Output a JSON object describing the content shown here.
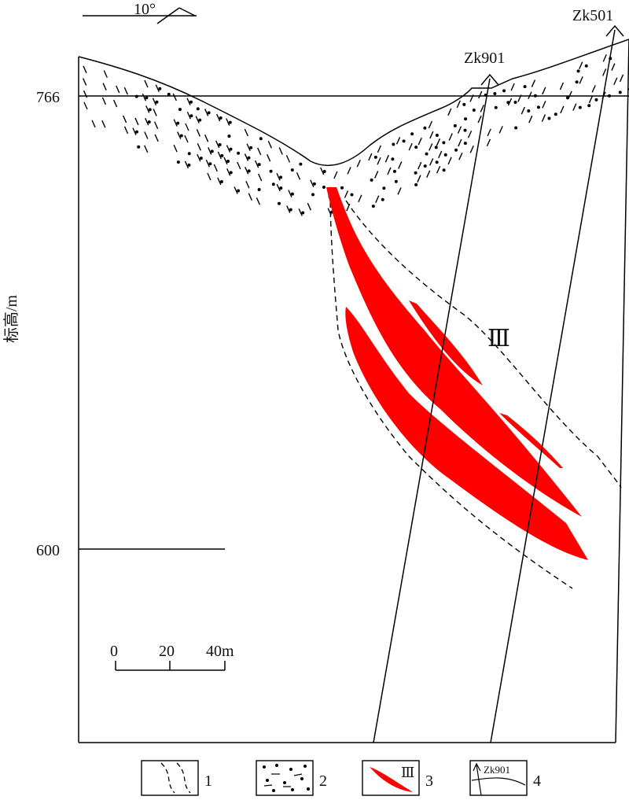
{
  "orientation": {
    "angle_label": "10°"
  },
  "axis": {
    "ylabel": "标高/m",
    "elevation_labels": [
      "766",
      "600"
    ]
  },
  "boreholes": [
    {
      "name": "Zk901"
    },
    {
      "name": "Zk501"
    }
  ],
  "orebody": {
    "label": "Ⅲ",
    "color": "#ff0000"
  },
  "scale_bar": {
    "ticks": [
      "0",
      "20",
      "40m"
    ]
  },
  "legend": [
    {
      "number": "1",
      "symbol": "dashed-lines"
    },
    {
      "number": "2",
      "symbol": "dotted-pattern"
    },
    {
      "number": "3",
      "symbol": "red-orebody",
      "label": "Ⅲ"
    },
    {
      "number": "4",
      "symbol": "borehole",
      "label": "Zk901"
    }
  ]
}
